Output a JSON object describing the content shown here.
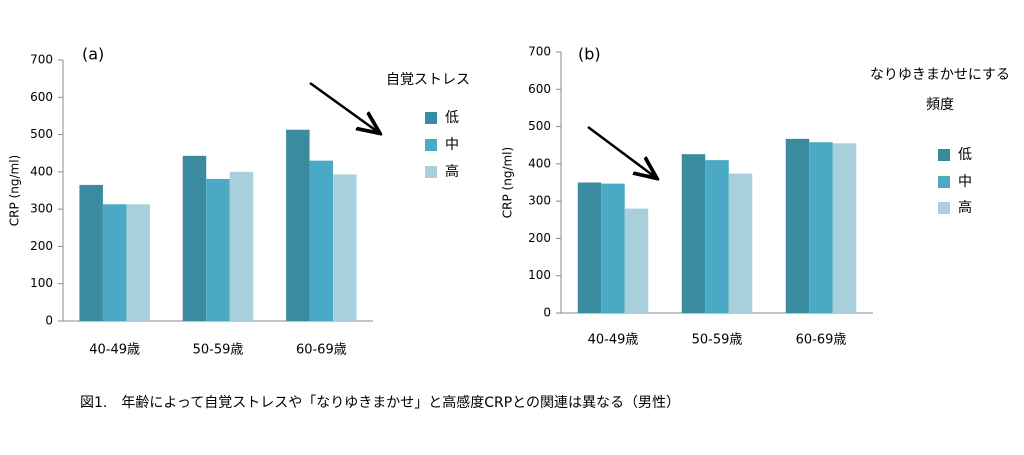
{
  "chart_data": [
    {
      "type": "bar",
      "panel_label": "(a)",
      "ylabel": "CRP (ng/ml)",
      "legend_title": [
        "自覚ストレス"
      ],
      "categories": [
        "40-49歳",
        "50-59歳",
        "60-69歳"
      ],
      "series": [
        {
          "name": "低",
          "color": "#3a8ba0",
          "values": [
            365,
            443,
            513
          ]
        },
        {
          "name": "中",
          "color": "#4aaac6",
          "values": [
            313,
            381,
            430
          ]
        },
        {
          "name": "高",
          "color": "#a8cfdc",
          "values": [
            313,
            400,
            393
          ]
        }
      ],
      "ylim": [
        0,
        700
      ],
      "yticks": [
        0,
        100,
        200,
        300,
        400,
        500,
        600,
        700
      ]
    },
    {
      "type": "bar",
      "panel_label": "(b)",
      "ylabel": "CRP (ng/ml)",
      "legend_title": [
        "なりゆきまかせにする",
        "頻度"
      ],
      "categories": [
        "40-49歳",
        "50-59歳",
        "60-69歳"
      ],
      "series": [
        {
          "name": "低",
          "color": "#3a8ba0",
          "values": [
            350,
            426,
            467
          ]
        },
        {
          "name": "中",
          "color": "#4aaac6",
          "values": [
            347,
            410,
            458
          ]
        },
        {
          "name": "高",
          "color": "#a8cfdc",
          "values": [
            280,
            374,
            455
          ]
        }
      ],
      "ylim": [
        0,
        700
      ],
      "yticks": [
        0,
        100,
        200,
        300,
        400,
        500,
        600,
        700
      ]
    }
  ],
  "caption": "図1.　年齢によって自覚ストレスや「なりゆきまかせ」と高感度CRPとの関連は異なる（男性）"
}
